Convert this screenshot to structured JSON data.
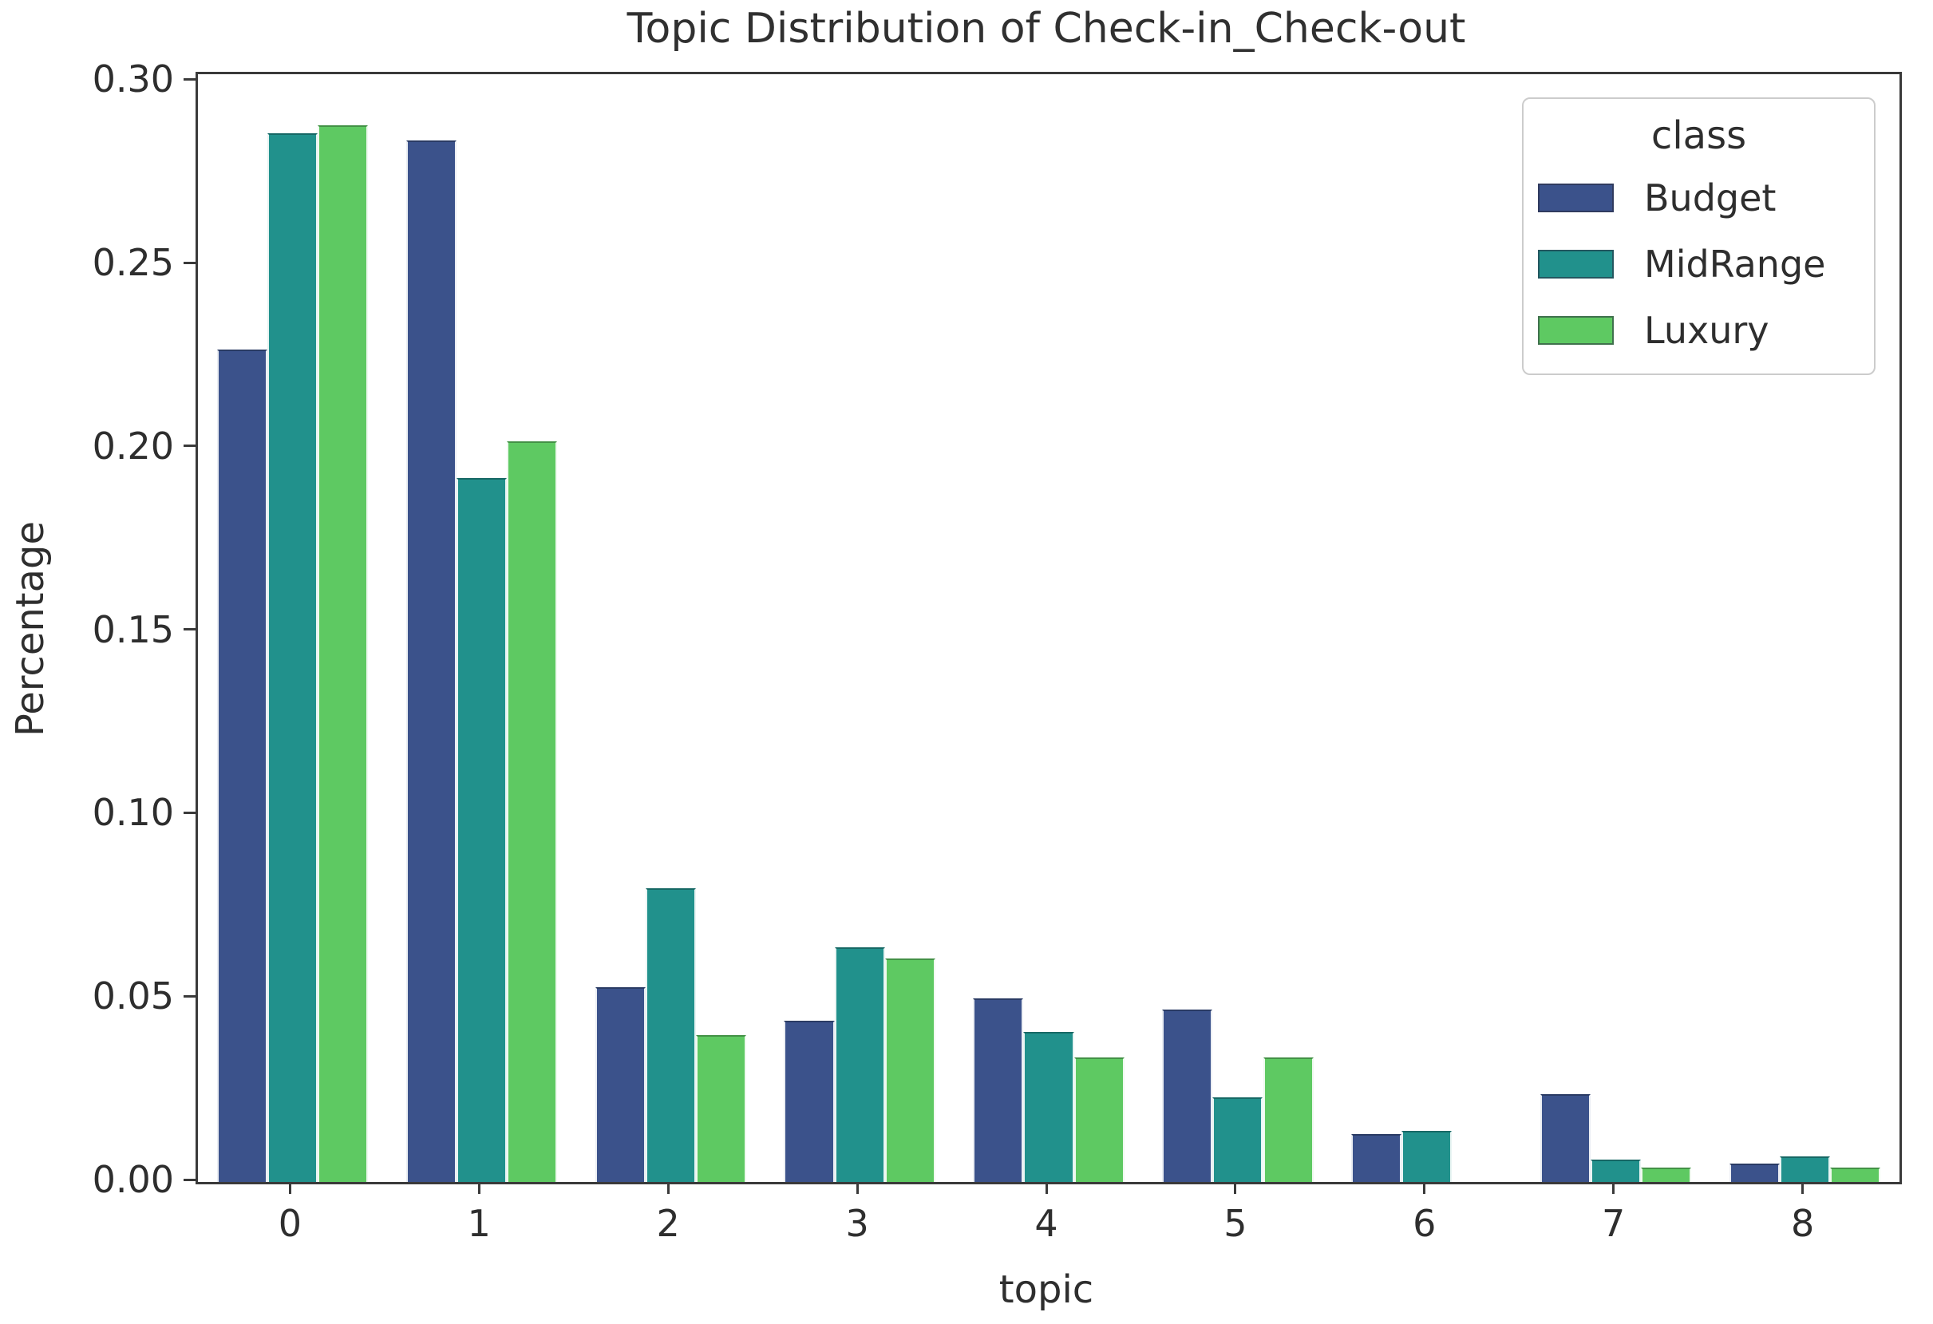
{
  "figure": {
    "title": "Topic Distribution of Check-in_Check-out"
  },
  "axes": {
    "ylabel": "Percentage",
    "xlabel": "topic"
  },
  "legend": {
    "title": "class"
  },
  "chart_data": {
    "type": "bar",
    "title": "Topic Distribution of Check-in_Check-out",
    "xlabel": "topic",
    "ylabel": "Percentage",
    "categories": [
      "0",
      "1",
      "2",
      "3",
      "4",
      "5",
      "6",
      "7",
      "8"
    ],
    "series": [
      {
        "name": "Budget",
        "color": "#3b528b",
        "values": [
          0.227,
          0.284,
          0.053,
          0.044,
          0.05,
          0.047,
          0.013,
          0.024,
          0.005
        ]
      },
      {
        "name": "MidRange",
        "color": "#21918c",
        "values": [
          0.286,
          0.192,
          0.08,
          0.064,
          0.041,
          0.023,
          0.014,
          0.006,
          0.007
        ]
      },
      {
        "name": "Luxury",
        "color": "#5ec962",
        "values": [
          0.288,
          0.202,
          0.04,
          0.061,
          0.034,
          0.034,
          0.0,
          0.004,
          0.004
        ]
      }
    ],
    "ylim": [
      0,
      0.302
    ],
    "yticks": [
      "0.00",
      "0.05",
      "0.10",
      "0.15",
      "0.20",
      "0.25",
      "0.30"
    ],
    "grid": false,
    "legend_position": "upper right",
    "frame_color": "#3a3a3a",
    "background_color": "#ffffff"
  }
}
